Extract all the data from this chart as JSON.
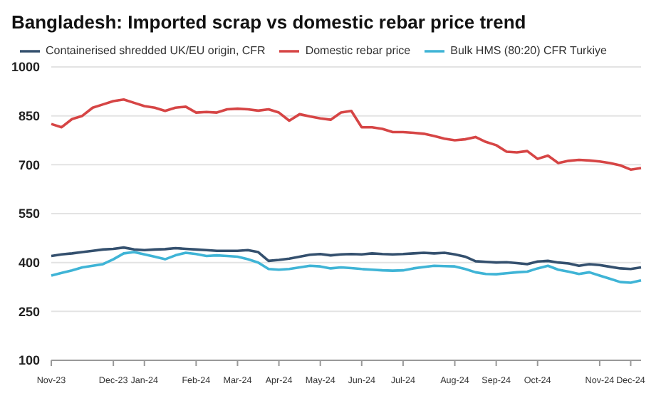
{
  "chart_data": {
    "type": "line",
    "title": "Bangladesh: Imported scrap vs domestic rebar price trend",
    "categories": [
      "Nov-23",
      null,
      null,
      null,
      null,
      null,
      "Dec-23",
      null,
      null,
      "Jan-24",
      null,
      null,
      null,
      null,
      "Feb-24",
      null,
      null,
      null,
      "Mar-24",
      null,
      null,
      null,
      "Apr-24",
      null,
      null,
      null,
      "May-24",
      null,
      null,
      null,
      "Jun-24",
      null,
      null,
      null,
      "Jul-24",
      null,
      null,
      null,
      null,
      "Aug-24",
      null,
      null,
      null,
      "Sep-24",
      null,
      null,
      null,
      "Oct-24",
      null,
      null,
      null,
      null,
      null,
      "Nov-24",
      null,
      null,
      "Dec-24",
      null
    ],
    "series": [
      {
        "name": "Containerised shredded UK/EU origin, CFR",
        "color": "#34506e",
        "values": [
          420,
          425,
          428,
          432,
          436,
          440,
          442,
          446,
          440,
          438,
          440,
          441,
          444,
          442,
          440,
          438,
          436,
          436,
          436,
          438,
          432,
          405,
          408,
          412,
          418,
          424,
          426,
          422,
          425,
          426,
          425,
          428,
          426,
          425,
          426,
          428,
          430,
          428,
          430,
          425,
          418,
          404,
          402,
          400,
          401,
          398,
          395,
          403,
          405,
          400,
          397,
          390,
          395,
          392,
          387,
          382,
          380,
          385
        ]
      },
      {
        "name": "Domestic rebar price",
        "color": "#d64545",
        "values": [
          825,
          815,
          840,
          850,
          875,
          885,
          895,
          900,
          890,
          880,
          875,
          865,
          875,
          878,
          860,
          862,
          860,
          870,
          872,
          870,
          866,
          870,
          860,
          835,
          855,
          848,
          842,
          838,
          860,
          865,
          815,
          815,
          810,
          800,
          800,
          798,
          795,
          788,
          780,
          775,
          778,
          785,
          770,
          760,
          740,
          738,
          742,
          718,
          728,
          705,
          712,
          715,
          713,
          710,
          705,
          698,
          685,
          690
        ]
      },
      {
        "name": "Bulk HMS (80:20) CFR Turkiye",
        "color": "#3fb4d6",
        "values": [
          360,
          368,
          376,
          385,
          390,
          395,
          410,
          428,
          432,
          425,
          418,
          410,
          422,
          430,
          426,
          420,
          422,
          420,
          418,
          410,
          400,
          380,
          378,
          380,
          385,
          390,
          388,
          382,
          385,
          383,
          380,
          378,
          376,
          375,
          376,
          382,
          386,
          390,
          389,
          388,
          380,
          370,
          365,
          364,
          367,
          370,
          372,
          382,
          390,
          378,
          372,
          365,
          370,
          360,
          350,
          340,
          338,
          345
        ]
      }
    ],
    "ylim": [
      100,
      1000
    ],
    "yticks": [
      100,
      250,
      400,
      550,
      700,
      850,
      1000
    ],
    "grid": "y",
    "legend": "top",
    "marker": "none",
    "line_style": "solid"
  }
}
